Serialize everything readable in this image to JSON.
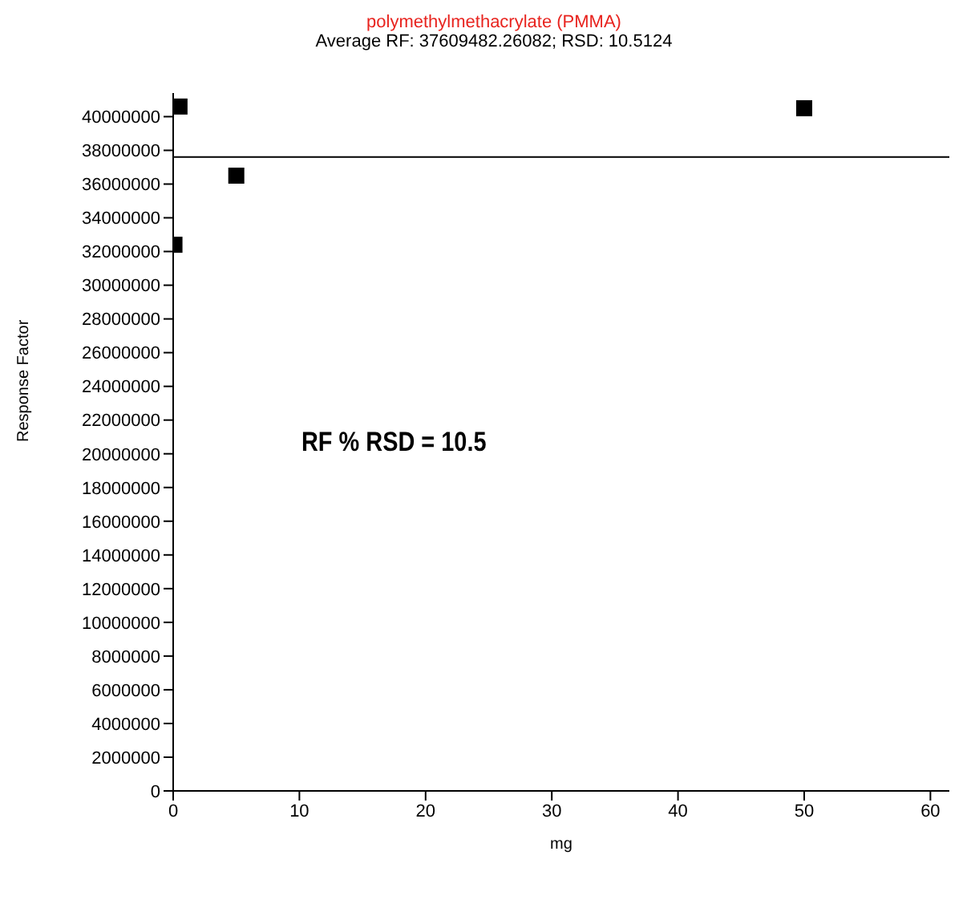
{
  "chart_data": {
    "type": "scatter",
    "title": "polymethylmethacrylate (PMMA)",
    "subtitle": "Average RF: 37609482.26082; RSD: 10.5124",
    "xlabel": "mg",
    "ylabel": "Response Factor",
    "x": [
      0.1,
      0.5,
      5,
      50
    ],
    "series": [
      {
        "color": "#000000",
        "values": [
          32400000,
          40600000,
          36500000,
          40500000
        ]
      }
    ],
    "marker": "square",
    "grid": false,
    "legend": false,
    "xlim": [
      0,
      61.5
    ],
    "xticks": [
      0,
      10,
      20,
      30,
      40,
      50,
      60
    ],
    "ylim": [
      0,
      41400000
    ],
    "yticks": [
      0,
      2000000,
      4000000,
      6000000,
      8000000,
      10000000,
      12000000,
      14000000,
      16000000,
      18000000,
      20000000,
      22000000,
      24000000,
      26000000,
      28000000,
      30000000,
      32000000,
      34000000,
      36000000,
      38000000,
      40000000
    ],
    "ref_lines": [
      {
        "axis": "y",
        "value": 37609482.26082,
        "color": "#000000"
      }
    ],
    "annotations": [
      "RF % RSD = 10.5"
    ]
  }
}
